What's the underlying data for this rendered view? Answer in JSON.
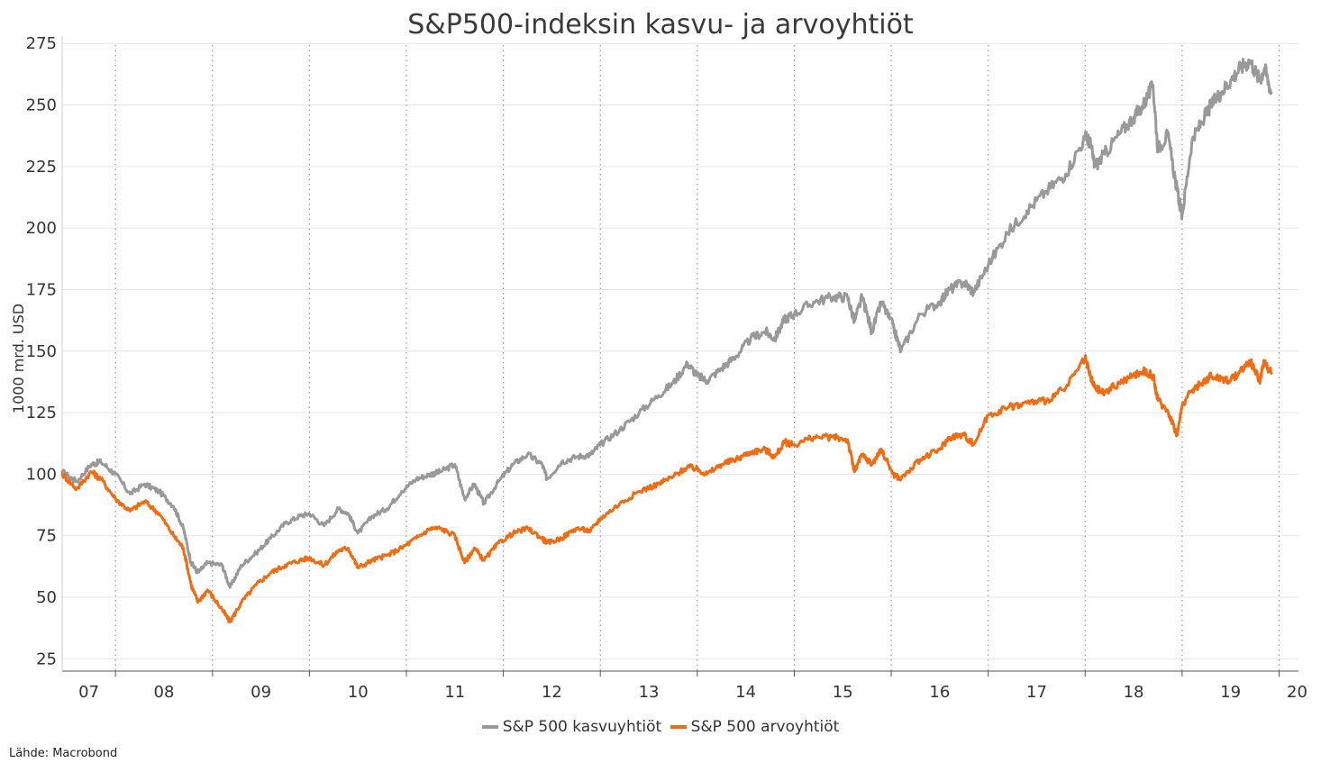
{
  "chart_data": {
    "type": "line",
    "title": "S&P500-indeksin kasvu- ja arvoyhtiöt",
    "xlabel": "",
    "ylabel": "1000 mrd. USD",
    "ylim": [
      20,
      278
    ],
    "yticks": [
      25,
      50,
      75,
      100,
      125,
      150,
      175,
      200,
      225,
      250,
      275
    ],
    "xlim": [
      2007.45,
      2020.2
    ],
    "xticks": [
      "07",
      "08",
      "09",
      "10",
      "11",
      "12",
      "13",
      "14",
      "15",
      "16",
      "17",
      "18",
      "19",
      "20"
    ],
    "grid": "horizontal solid lines, vertical dotted year separators",
    "legend_position": "bottom",
    "source": "Lähde: Macrobond",
    "series": [
      {
        "name": "S&P 500 kasvuyhtiöt",
        "color": "#999999",
        "x": [
          2007.45,
          2007.6,
          2007.75,
          2007.85,
          2008.0,
          2008.15,
          2008.3,
          2008.45,
          2008.6,
          2008.7,
          2008.78,
          2008.85,
          2008.95,
          2009.1,
          2009.18,
          2009.3,
          2009.45,
          2009.6,
          2009.75,
          2009.9,
          2010.0,
          2010.15,
          2010.3,
          2010.4,
          2010.5,
          2010.65,
          2010.8,
          2010.95,
          2011.1,
          2011.25,
          2011.35,
          2011.5,
          2011.6,
          2011.7,
          2011.8,
          2011.95,
          2012.1,
          2012.25,
          2012.4,
          2012.45,
          2012.6,
          2012.75,
          2012.9,
          2013.0,
          2013.2,
          2013.4,
          2013.6,
          2013.75,
          2013.9,
          2014.0,
          2014.1,
          2014.25,
          2014.4,
          2014.55,
          2014.7,
          2014.8,
          2014.9,
          2015.0,
          2015.2,
          2015.4,
          2015.55,
          2015.62,
          2015.7,
          2015.8,
          2015.9,
          2016.02,
          2016.1,
          2016.3,
          2016.5,
          2016.6,
          2016.75,
          2016.85,
          2017.0,
          2017.2,
          2017.4,
          2017.6,
          2017.8,
          2018.0,
          2018.05,
          2018.1,
          2018.2,
          2018.35,
          2018.5,
          2018.6,
          2018.7,
          2018.75,
          2018.85,
          2018.95,
          2019.0,
          2019.1,
          2019.2,
          2019.3,
          2019.4,
          2019.5,
          2019.6,
          2019.7,
          2019.8,
          2019.85,
          2019.92
        ],
        "values": [
          101,
          97,
          104,
          105,
          100,
          92,
          96,
          93,
          87,
          78,
          64,
          60,
          64,
          63,
          54,
          63,
          68,
          74,
          80,
          83,
          84,
          79,
          86,
          84,
          76,
          83,
          86,
          93,
          98,
          100,
          101,
          104,
          90,
          96,
          88,
          97,
          104,
          108,
          104,
          98,
          105,
          107,
          108,
          112,
          118,
          125,
          132,
          137,
          145,
          140,
          138,
          143,
          148,
          155,
          158,
          155,
          163,
          165,
          170,
          172,
          172,
          162,
          172,
          158,
          170,
          160,
          150,
          165,
          170,
          175,
          178,
          174,
          185,
          198,
          207,
          215,
          222,
          237,
          235,
          225,
          230,
          238,
          245,
          250,
          258,
          232,
          238,
          215,
          205,
          235,
          243,
          250,
          255,
          260,
          265,
          268,
          260,
          265,
          255
        ]
      },
      {
        "name": "S&P 500 arvoyhtiöt",
        "color": "#f26b11",
        "x": [
          2007.45,
          2007.6,
          2007.75,
          2007.85,
          2008.0,
          2008.15,
          2008.3,
          2008.45,
          2008.6,
          2008.7,
          2008.78,
          2008.85,
          2008.95,
          2009.1,
          2009.18,
          2009.3,
          2009.45,
          2009.6,
          2009.75,
          2009.9,
          2010.0,
          2010.15,
          2010.3,
          2010.4,
          2010.5,
          2010.65,
          2010.8,
          2010.95,
          2011.1,
          2011.25,
          2011.35,
          2011.5,
          2011.6,
          2011.7,
          2011.8,
          2011.95,
          2012.1,
          2012.25,
          2012.4,
          2012.45,
          2012.6,
          2012.75,
          2012.9,
          2013.0,
          2013.2,
          2013.4,
          2013.6,
          2013.75,
          2013.9,
          2014.0,
          2014.1,
          2014.25,
          2014.4,
          2014.55,
          2014.7,
          2014.8,
          2014.9,
          2015.0,
          2015.2,
          2015.4,
          2015.55,
          2015.62,
          2015.7,
          2015.8,
          2015.9,
          2016.02,
          2016.1,
          2016.3,
          2016.5,
          2016.6,
          2016.75,
          2016.85,
          2017.0,
          2017.2,
          2017.4,
          2017.6,
          2017.8,
          2018.0,
          2018.05,
          2018.1,
          2018.2,
          2018.35,
          2018.5,
          2018.6,
          2018.7,
          2018.75,
          2018.85,
          2018.95,
          2019.0,
          2019.1,
          2019.2,
          2019.3,
          2019.4,
          2019.5,
          2019.6,
          2019.7,
          2019.8,
          2019.85,
          2019.92
        ],
        "values": [
          100,
          94,
          101,
          98,
          90,
          85,
          89,
          84,
          75,
          70,
          55,
          48,
          53,
          45,
          40,
          48,
          55,
          60,
          63,
          65,
          66,
          63,
          69,
          70,
          62,
          65,
          67,
          70,
          74,
          78,
          78,
          75,
          64,
          70,
          65,
          72,
          76,
          78,
          74,
          72,
          74,
          78,
          77,
          82,
          88,
          93,
          96,
          99,
          103,
          102,
          100,
          104,
          106,
          109,
          110,
          107,
          113,
          112,
          115,
          115,
          114,
          101,
          108,
          104,
          110,
          100,
          98,
          106,
          110,
          115,
          116,
          112,
          124,
          127,
          129,
          130,
          135,
          147,
          140,
          135,
          133,
          137,
          140,
          142,
          140,
          130,
          126,
          116,
          128,
          134,
          137,
          140,
          139,
          138,
          142,
          146,
          138,
          146,
          141
        ]
      }
    ]
  },
  "legend": {
    "growth_label": "S&P 500 kasvuyhtiöt",
    "value_label": "S&P 500 arvoyhtiöt"
  },
  "source_note": "Lähde: Macrobond"
}
